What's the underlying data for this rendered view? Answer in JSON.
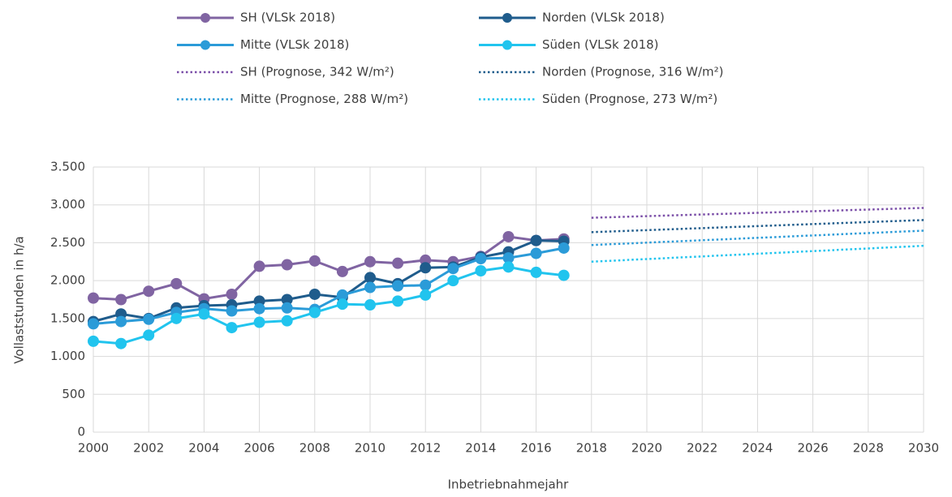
{
  "chart_data": {
    "type": "line",
    "x_label": "Inbetriebnahmejahr",
    "y_label": "Vollaststunden in h/a",
    "x": [
      2000,
      2001,
      2002,
      2003,
      2004,
      2005,
      2006,
      2007,
      2008,
      2009,
      2010,
      2011,
      2012,
      2013,
      2014,
      2015,
      2016,
      2017
    ],
    "xlim": [
      2000,
      2030
    ],
    "xticks": [
      2000,
      2002,
      2004,
      2006,
      2008,
      2010,
      2012,
      2014,
      2016,
      2018,
      2020,
      2022,
      2024,
      2026,
      2028,
      2030
    ],
    "ylim": [
      0,
      3500
    ],
    "yticks": [
      0,
      500,
      {
        "value": 1000,
        "label": "1.000"
      },
      {
        "value": 1500,
        "label": "1.500"
      },
      {
        "value": 2000,
        "label": "2.000"
      },
      {
        "value": 2500,
        "label": "2.500"
      },
      {
        "value": 3000,
        "label": "3.000"
      },
      {
        "value": 3500,
        "label": "3.500"
      }
    ],
    "grid": true,
    "legend": "top",
    "series": [
      {
        "name": "SH (VLSk 2018)",
        "color": "#8064a2",
        "line_style": "solid",
        "marker": true,
        "values": [
          1770,
          1750,
          1860,
          1960,
          1760,
          1820,
          2190,
          2210,
          2260,
          2120,
          2250,
          2230,
          2270,
          2250,
          2320,
          2580,
          2530,
          2550
        ]
      },
      {
        "name": "Norden (VLSk 2018)",
        "color": "#1f5c8c",
        "line_style": "solid",
        "marker": true,
        "values": [
          1460,
          1560,
          1500,
          1640,
          1670,
          1680,
          1730,
          1750,
          1820,
          1780,
          2040,
          1960,
          2170,
          2180,
          2310,
          2380,
          2530,
          2520
        ]
      },
      {
        "name": "Mitte (VLSk 2018)",
        "color": "#2b9bd8",
        "line_style": "solid",
        "marker": true,
        "values": [
          1430,
          1460,
          1490,
          1580,
          1630,
          1600,
          1630,
          1640,
          1620,
          1810,
          1910,
          1930,
          1940,
          2160,
          2290,
          2300,
          2360,
          2430
        ]
      },
      {
        "name": "Süden (VLSk 2018)",
        "color": "#21c4ee",
        "line_style": "solid",
        "marker": true,
        "values": [
          1200,
          1170,
          1280,
          1500,
          1560,
          1380,
          1450,
          1470,
          1580,
          1690,
          1680,
          1730,
          1810,
          2000,
          2130,
          2180,
          2110,
          2070
        ]
      },
      {
        "name": "SH (Prognose, 342 W/m²)",
        "color": "#7b4fa8",
        "line_style": "dotted",
        "marker": false,
        "x": [
          2018,
          2030
        ],
        "values": [
          2830,
          2960
        ]
      },
      {
        "name": "Norden (Prognose, 316 W/m²)",
        "color": "#1f5c8c",
        "line_style": "dotted",
        "marker": false,
        "x": [
          2018,
          2030
        ],
        "values": [
          2640,
          2800
        ]
      },
      {
        "name": "Mitte (Prognose, 288 W/m²)",
        "color": "#2b9bd8",
        "line_style": "dotted",
        "marker": false,
        "x": [
          2018,
          2030
        ],
        "values": [
          2470,
          2660
        ]
      },
      {
        "name": "Süden (Prognose, 273 W/m²)",
        "color": "#21c4ee",
        "line_style": "dotted",
        "marker": false,
        "x": [
          2018,
          2030
        ],
        "values": [
          2250,
          2460
        ]
      }
    ]
  }
}
